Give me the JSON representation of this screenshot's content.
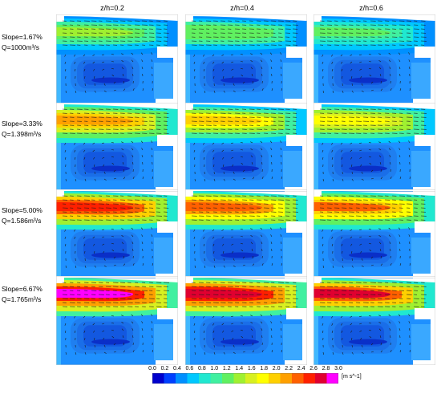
{
  "columns": [
    "z/h=0.2",
    "z/h=0.4",
    "z/h=0.6"
  ],
  "rows": [
    {
      "slope": "Slope=1.67%",
      "q": "Q=1000m³/s"
    },
    {
      "slope": "Slope=3.33%",
      "q": "Q=1.398m³/s"
    },
    {
      "slope": "Slope=5.00%",
      "q": "Q=1.586m³/s"
    },
    {
      "slope": "Slope=6.67%",
      "q": "Q=1.765m³/s"
    }
  ],
  "colorbar": {
    "ticks": [
      "0.0",
      "0.2",
      "0.4",
      "0.6",
      "0.8",
      "1.0",
      "1.2",
      "1.4",
      "1.6",
      "1.8",
      "2.0",
      "2.2",
      "2.4",
      "2.6",
      "2.8",
      "3.0"
    ],
    "unit": "[m s^-1]",
    "colors": [
      "#0000cc",
      "#0040ff",
      "#0090ff",
      "#00c8ff",
      "#20e8d0",
      "#40f0a0",
      "#60f060",
      "#a0f030",
      "#d8f020",
      "#ffff00",
      "#ffd000",
      "#ffa000",
      "#ff6000",
      "#ff2000",
      "#e00030",
      "#ff00ff"
    ]
  },
  "panel_intensity": [
    [
      0.45,
      0.42,
      0.4
    ],
    [
      0.72,
      0.66,
      0.62
    ],
    [
      0.85,
      0.8,
      0.75
    ],
    [
      0.97,
      0.93,
      0.88
    ]
  ]
}
